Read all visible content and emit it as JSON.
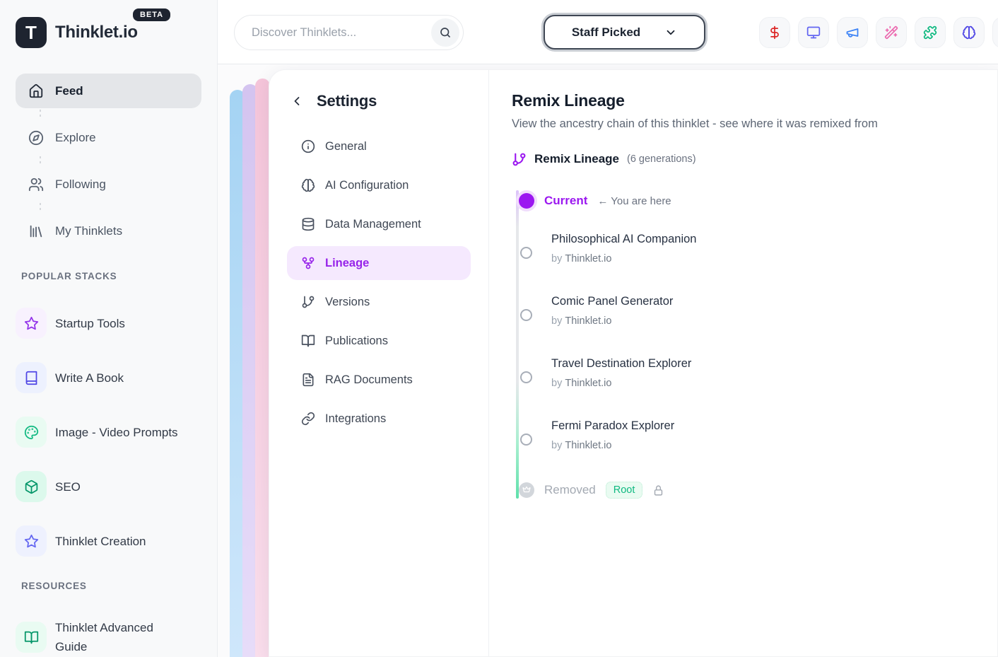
{
  "colors": {
    "accent_purple": "#9b17f0",
    "accent_purple_soft": "#f5e9fe",
    "root_green": "#10b981",
    "timeline_green": "#5fe0ab"
  },
  "brand": {
    "logo_letter": "T",
    "name": "Thinklet.io",
    "beta_label": "BETA"
  },
  "header": {
    "search_placeholder": "Discover Thinklets...",
    "filter_button": "Staff Picked",
    "action_icons": [
      {
        "icon": "dollar",
        "color": "#dc2626"
      },
      {
        "icon": "monitor",
        "color": "#6366f1"
      },
      {
        "icon": "megaphone",
        "color": "#3b82f6"
      },
      {
        "icon": "wand",
        "color": "#ec6bb0"
      },
      {
        "icon": "puzzle",
        "color": "#10b981"
      },
      {
        "icon": "brain",
        "color": "#4f46e5"
      },
      {
        "icon": "",
        "color": "#9ca3af"
      }
    ]
  },
  "sidebar": {
    "nav": [
      {
        "label": "Feed",
        "icon": "home",
        "active": true
      },
      {
        "label": "Explore",
        "icon": "compass",
        "active": false
      },
      {
        "label": "Following",
        "icon": "users",
        "active": false
      },
      {
        "label": "My Thinklets",
        "icon": "library",
        "active": false
      }
    ],
    "popular_header": "POPULAR STACKS",
    "stacks": [
      {
        "label": "Startup Tools",
        "icon": "star",
        "color": "#9333ea",
        "bg": "#f8f1fe"
      },
      {
        "label": "Write A Book",
        "icon": "book",
        "color": "#4f46e5",
        "bg": "#edf1fe"
      },
      {
        "label": "Image - Video Prompts",
        "icon": "palette",
        "color": "#10b981",
        "bg": "#e9fbf2"
      },
      {
        "label": "SEO",
        "icon": "box",
        "color": "#059669",
        "bg": "#dcf9ec"
      },
      {
        "label": "Thinklet Creation",
        "icon": "star",
        "color": "#6366f1",
        "bg": "#eef1fe"
      }
    ],
    "resources_header": "RESOURCES",
    "resources": [
      {
        "label": "Thinklet Advanced Guide",
        "icon": "book-open",
        "color": "#059669",
        "bg": "#e9fbf2"
      }
    ]
  },
  "settings": {
    "title": "Settings",
    "items": [
      {
        "label": "General",
        "icon": "info",
        "active": false
      },
      {
        "label": "AI Configuration",
        "icon": "brain",
        "active": false
      },
      {
        "label": "Data Management",
        "icon": "database",
        "active": false
      },
      {
        "label": "Lineage",
        "icon": "git-fork",
        "active": true
      },
      {
        "label": "Versions",
        "icon": "git-branch",
        "active": false
      },
      {
        "label": "Publications",
        "icon": "book-open",
        "active": false
      },
      {
        "label": "RAG Documents",
        "icon": "file-text",
        "active": false
      },
      {
        "label": "Integrations",
        "icon": "link",
        "active": false
      }
    ]
  },
  "lineage": {
    "title": "Remix Lineage",
    "subtitle": "View the ancestry chain of this thinklet - see where it was remixed from",
    "section_title": "Remix Lineage",
    "section_meta": "(6 generations)",
    "current_label": "Current",
    "current_hint": "← You are here",
    "by_prefix": "by",
    "ancestors": [
      {
        "title": "Philosophical AI Companion",
        "author": "Thinklet.io"
      },
      {
        "title": "Comic Panel Generator",
        "author": "Thinklet.io"
      },
      {
        "title": "Travel Destination Explorer",
        "author": "Thinklet.io"
      },
      {
        "title": "Fermi Paradox Explorer",
        "author": "Thinklet.io"
      }
    ],
    "removed_label": "Removed",
    "root_badge": "Root"
  }
}
